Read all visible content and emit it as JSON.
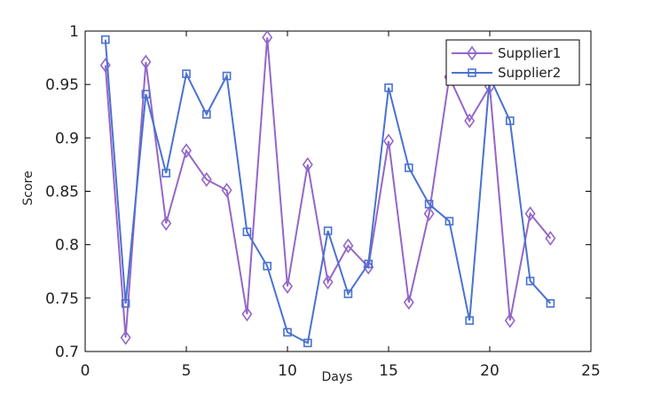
{
  "chart_data": {
    "type": "line",
    "title": "",
    "xlabel": "Days",
    "ylabel": "Score",
    "xlim": [
      0,
      25
    ],
    "ylim": [
      0.7,
      1.0
    ],
    "xticks": [
      0,
      5,
      10,
      15,
      20,
      25
    ],
    "yticks": [
      0.7,
      0.75,
      0.8,
      0.85,
      0.9,
      0.95,
      1.0
    ],
    "xtick_labels": [
      "0",
      "5",
      "10",
      "15",
      "20",
      "25"
    ],
    "ytick_labels": [
      "0.7",
      "0.75",
      "0.8",
      "0.85",
      "0.9",
      "0.95",
      "1"
    ],
    "grid": false,
    "legend_position": "top-right",
    "x": [
      1,
      2,
      3,
      4,
      5,
      6,
      7,
      8,
      9,
      10,
      11,
      12,
      13,
      14,
      15,
      16,
      17,
      18,
      19,
      20,
      21,
      22,
      23
    ],
    "series": [
      {
        "name": "Supplier1",
        "color": "#9467c8",
        "marker": "diamond",
        "values": [
          0.968,
          0.713,
          0.971,
          0.82,
          0.888,
          0.861,
          0.851,
          0.735,
          0.994,
          0.761,
          0.875,
          0.765,
          0.799,
          0.779,
          0.897,
          0.746,
          0.829,
          0.957,
          0.916,
          0.948,
          0.729,
          0.829,
          0.806
        ]
      },
      {
        "name": "Supplier2",
        "color": "#4a72d0",
        "marker": "square",
        "values": [
          0.992,
          0.745,
          0.941,
          0.867,
          0.96,
          0.922,
          0.958,
          0.812,
          0.78,
          0.718,
          0.708,
          0.813,
          0.754,
          0.782,
          0.947,
          0.872,
          0.838,
          0.822,
          0.729,
          0.957,
          0.916,
          0.766,
          0.745
        ]
      }
    ]
  }
}
